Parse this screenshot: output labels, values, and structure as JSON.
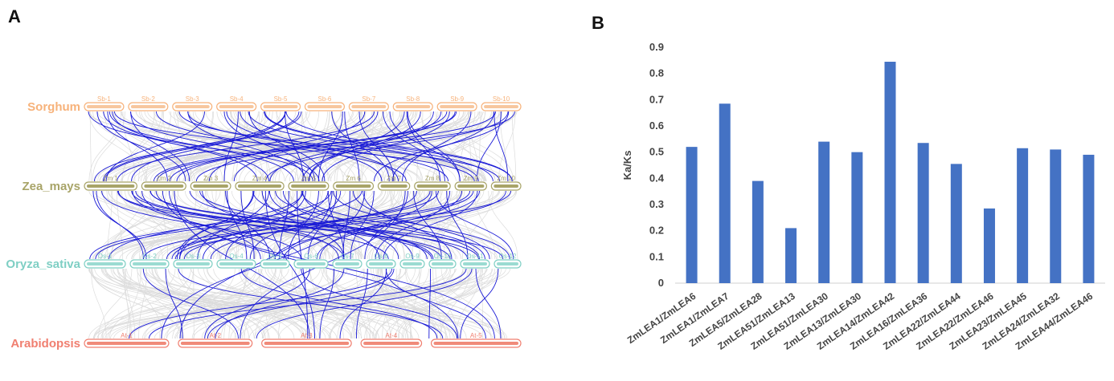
{
  "panel_a": {
    "letter": "A",
    "colors": {
      "background_links": "#dcdcdc",
      "highlight_links": "#1a1ad6"
    },
    "species": [
      {
        "name": "Sorghum",
        "color": "#f7b27a",
        "fill": "#f7c79e",
        "chromosomes": [
          "Sb-1",
          "Sb-2",
          "Sb-3",
          "Sb-4",
          "Sb-5",
          "Sb-6",
          "Sb-7",
          "Sb-8",
          "Sb-9",
          "Sb-10"
        ]
      },
      {
        "name": "Zea_mays",
        "color": "#a8a468",
        "fill": "#a8a468",
        "chromosomes": [
          "Zm 1",
          "Zm 2",
          "Zm 3",
          "Zm 4",
          "Zm 5",
          "Zm 6",
          "Zm 7",
          "Zm 8",
          "Zm 9",
          "Zm 10"
        ]
      },
      {
        "name": "Oryza_sativa",
        "color": "#7fcfc4",
        "fill": "#9bdbd2",
        "chromosomes": [
          "Os-1",
          "Os-2",
          "Os-3",
          "Os-4",
          "Os-5",
          "Os-6",
          "Os-7",
          "Os-8",
          "Os-9",
          "Os-10",
          "Os-11",
          "Os-12"
        ]
      },
      {
        "name": "Arabidopsis",
        "color": "#f07f70",
        "fill": "#f08a7a",
        "chromosomes": [
          "At-1",
          "At-2",
          "At-3",
          "At-4",
          "At-5"
        ]
      }
    ]
  },
  "panel_b": {
    "letter": "B"
  },
  "chart_data": {
    "type": "bar",
    "categories": [
      "ZmLEA1/ZmLEA6",
      "ZmLEA1/ZmLEA7",
      "ZmLEA5/ZmLEA28",
      "ZmLEA51/ZmLEA13",
      "ZmLEA51/ZmLEA30",
      "ZmLEA13/ZmLEA30",
      "ZmLEA14/ZmLEA42",
      "ZmLEA16/ZmLEA36",
      "ZmLEA22/ZmLEA44",
      "ZmLEA22/ZmLEA46",
      "ZmLEA23/ZmLEA45",
      "ZmLEA24/ZmLEA32",
      "ZmLEA44/ZmLEA46"
    ],
    "values": [
      0.52,
      0.685,
      0.39,
      0.21,
      0.54,
      0.5,
      0.845,
      0.535,
      0.455,
      0.285,
      0.515,
      0.51,
      0.49
    ],
    "title": "",
    "xlabel": "",
    "ylabel": "Ka/Ks",
    "ylim": [
      0,
      0.9
    ],
    "yticks": [
      "0",
      "0.1",
      "0.2",
      "0.3",
      "0.4",
      "0.5",
      "0.6",
      "0.7",
      "0.8",
      "0.9"
    ],
    "bar_color": "#4472c4",
    "grid": false
  }
}
